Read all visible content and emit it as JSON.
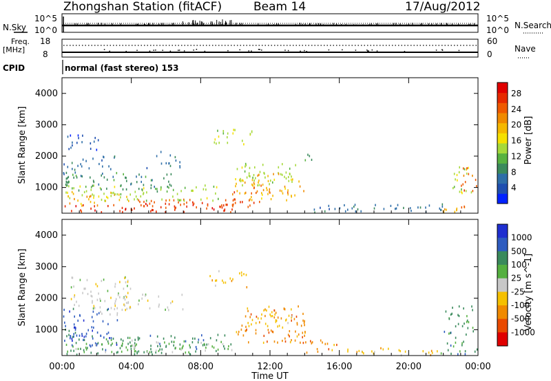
{
  "header": {
    "station": "Zhongshan Station (fitACF)",
    "beam": "Beam 14",
    "date": "17/Aug/2012"
  },
  "top_panels": {
    "nsky_label": "N.Sky",
    "nsky_ticks": [
      "10^5",
      "10^0"
    ],
    "nsearch_label": "N.Search",
    "nsearch_ticks": [
      "10^5",
      "10^0"
    ],
    "freq_label_1": "Freq.",
    "freq_label_2": "[MHz]",
    "freq_ticks": [
      "18",
      "8"
    ],
    "nave_label": "Nave",
    "nave_ticks": [
      "60",
      "0"
    ],
    "cpid_label": "CPID",
    "cpid_text": "normal (fast stereo) 153"
  },
  "chart_data": [
    {
      "type": "heatmap",
      "name": "power-panel",
      "xlabel": "",
      "ylabel": "Slant Range [km]",
      "x_ticks": [
        "00:00",
        "04:00",
        "08:00",
        "12:00",
        "16:00",
        "20:00",
        "00:00"
      ],
      "x_tick_hours": [
        0,
        4,
        8,
        12,
        16,
        20,
        24
      ],
      "xlim": [
        0,
        24
      ],
      "y_ticks": [
        1000,
        2000,
        3000,
        4000
      ],
      "ylim": [
        180,
        4500
      ],
      "colorbar": {
        "label": "Power [dB]",
        "ticks": [
          "4",
          "8",
          "12",
          "16",
          "20",
          "24",
          "28"
        ],
        "colors": [
          "#0022ff",
          "#1f4fb0",
          "#2e6ea8",
          "#3b8a5c",
          "#58b240",
          "#a6d93a",
          "#f5e000",
          "#f5b800",
          "#f08a00",
          "#ef5a00",
          "#e62a00",
          "#e00000"
        ]
      },
      "regions": [
        {
          "t": [
            0.1,
            9.9
          ],
          "r": [
            180,
            520
          ],
          "ci": 10
        },
        {
          "t": [
            4.0,
            10.0
          ],
          "r": [
            350,
            650
          ],
          "ci": 9
        },
        {
          "t": [
            0.2,
            4.0
          ],
          "r": [
            450,
            900
          ],
          "ci": 7
        },
        {
          "t": [
            0.2,
            9.0
          ],
          "r": [
            600,
            1100
          ],
          "ci": 5
        },
        {
          "t": [
            0.0,
            6.5
          ],
          "r": [
            900,
            1500
          ],
          "ci": 3
        },
        {
          "t": [
            0.0,
            1.2
          ],
          "r": [
            1400,
            1900
          ],
          "ci": 2
        },
        {
          "t": [
            1.0,
            3.2
          ],
          "r": [
            1600,
            2050
          ],
          "ci": 2
        },
        {
          "t": [
            4.8,
            6.8
          ],
          "r": [
            1650,
            2200
          ],
          "ci": 2
        },
        {
          "t": [
            9.8,
            14.0
          ],
          "r": [
            600,
            1300
          ],
          "ci": 7
        },
        {
          "t": [
            10.0,
            13.5
          ],
          "r": [
            1100,
            1800
          ],
          "ci": 5
        },
        {
          "t": [
            9.8,
            11.5
          ],
          "r": [
            400,
            900
          ],
          "ci": 9
        },
        {
          "t": [
            10.5,
            13.2
          ],
          "r": [
            850,
            1500
          ],
          "ci": 8
        },
        {
          "t": [
            8.5,
            11.0
          ],
          "r": [
            2400,
            2900
          ],
          "ci": 5
        },
        {
          "t": [
            0.2,
            2.2
          ],
          "r": [
            2200,
            2700
          ],
          "ci": 1
        },
        {
          "t": [
            14.0,
            15.0
          ],
          "r": [
            1900,
            2100
          ],
          "ci": 3
        },
        {
          "t": [
            14.3,
            22.0
          ],
          "r": [
            200,
            500
          ],
          "ci": 2
        },
        {
          "t": [
            21.8,
            23.9
          ],
          "r": [
            250,
            480
          ],
          "ci": 8
        },
        {
          "t": [
            22.5,
            23.6
          ],
          "r": [
            800,
            1800
          ],
          "ci": 5
        },
        {
          "t": [
            23.0,
            24.0
          ],
          "r": [
            900,
            1700
          ],
          "ci": 9
        }
      ]
    },
    {
      "type": "heatmap",
      "name": "velocity-panel",
      "xlabel": "Time UT",
      "ylabel": "Slant Range [km]",
      "x_ticks": [
        "00:00",
        "04:00",
        "08:00",
        "12:00",
        "16:00",
        "20:00",
        "00:00"
      ],
      "x_tick_hours": [
        0,
        4,
        8,
        12,
        16,
        20,
        24
      ],
      "xlim": [
        0,
        24
      ],
      "y_ticks": [
        1000,
        2000,
        3000,
        4000
      ],
      "ylim": [
        180,
        4500
      ],
      "colorbar": {
        "label": "Velocity [m s^-1]",
        "ticks": [
          "1000",
          "500",
          "100",
          "25",
          "-25",
          "-100",
          "-500",
          "-1000"
        ],
        "colors": [
          "#1f2fd0",
          "#2e5cc0",
          "#3a8a5c",
          "#55b040",
          "#c8c8c8",
          "#f5c000",
          "#f08a00",
          "#e94a00",
          "#e00000"
        ]
      },
      "regions": [
        {
          "t": [
            0.0,
            3.2
          ],
          "r": [
            500,
            1700
          ],
          "ci": 1
        },
        {
          "t": [
            0.1,
            9.5
          ],
          "r": [
            200,
            900
          ],
          "ci": 2
        },
        {
          "t": [
            0.0,
            4.0
          ],
          "r": [
            200,
            600
          ],
          "ci": 3
        },
        {
          "t": [
            0.5,
            4.0
          ],
          "r": [
            1500,
            2700
          ],
          "ci": 4
        },
        {
          "t": [
            3.0,
            7.0
          ],
          "r": [
            1650,
            2150
          ],
          "ci": 4
        },
        {
          "t": [
            4.0,
            9.9
          ],
          "r": [
            300,
            700
          ],
          "ci": 3
        },
        {
          "t": [
            10.0,
            14.0
          ],
          "r": [
            600,
            1800
          ],
          "ci": 6
        },
        {
          "t": [
            10.5,
            13.5
          ],
          "r": [
            1100,
            1600
          ],
          "ci": 5
        },
        {
          "t": [
            8.5,
            11.0
          ],
          "r": [
            2300,
            2900
          ],
          "ci": 5
        },
        {
          "t": [
            14.0,
            16.0
          ],
          "r": [
            200,
            700
          ],
          "ci": 6
        },
        {
          "t": [
            16.0,
            21.8
          ],
          "r": [
            200,
            450
          ],
          "ci": 5
        },
        {
          "t": [
            21.8,
            24.0
          ],
          "r": [
            200,
            450
          ],
          "ci": 2
        },
        {
          "t": [
            22.0,
            23.8
          ],
          "r": [
            500,
            1800
          ],
          "ci": 2
        }
      ]
    }
  ]
}
